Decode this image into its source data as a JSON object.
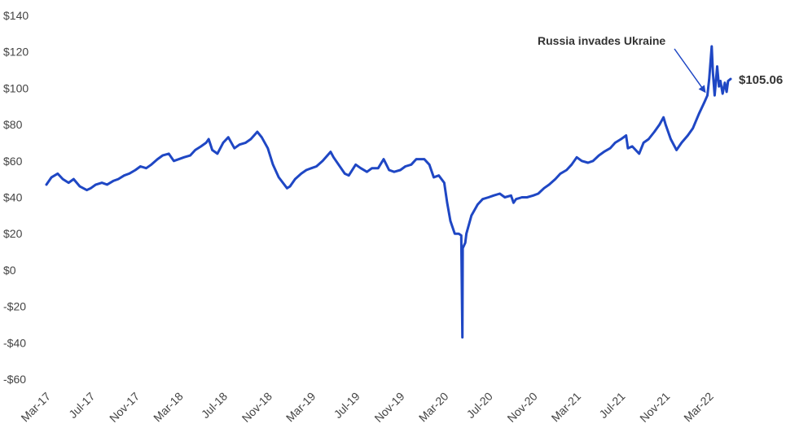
{
  "chart_data": {
    "type": "line",
    "title": "",
    "xlabel": "",
    "ylabel": "",
    "ylim": [
      -60,
      140
    ],
    "y_ticks": [
      140,
      120,
      100,
      80,
      60,
      40,
      20,
      0,
      -20,
      -40,
      -60
    ],
    "y_tick_labels": [
      "$140",
      "$120",
      "$100",
      "$80",
      "$60",
      "$40",
      "$20",
      "$0",
      "-$20",
      "-$40",
      "-$60"
    ],
    "x_tick_labels": [
      "Mar-17",
      "Jul-17",
      "Nov-17",
      "Mar-18",
      "Jul-18",
      "Nov-18",
      "Mar-19",
      "Jul-19",
      "Nov-19",
      "Mar-20",
      "Jul-20",
      "Nov-20",
      "Mar-21",
      "Jul-21",
      "Nov-21",
      "Mar-22"
    ],
    "grid": false,
    "legend": "none",
    "line_color": "#1f47c4",
    "series": [
      {
        "x": [
          "2017-03-01",
          "2017-03-15",
          "2017-04-01",
          "2017-04-15",
          "2017-05-01",
          "2017-05-15",
          "2017-06-01",
          "2017-06-20",
          "2017-07-01",
          "2017-07-15",
          "2017-08-01",
          "2017-08-15",
          "2017-09-01",
          "2017-09-15",
          "2017-10-01",
          "2017-10-15",
          "2017-11-01",
          "2017-11-15",
          "2017-12-01",
          "2017-12-15",
          "2018-01-01",
          "2018-01-15",
          "2018-02-01",
          "2018-02-15",
          "2018-03-01",
          "2018-03-15",
          "2018-04-01",
          "2018-04-15",
          "2018-05-01",
          "2018-05-15",
          "2018-05-22",
          "2018-06-01",
          "2018-06-15",
          "2018-07-01",
          "2018-07-15",
          "2018-08-01",
          "2018-08-15",
          "2018-09-01",
          "2018-09-15",
          "2018-10-03",
          "2018-10-15",
          "2018-11-01",
          "2018-11-15",
          "2018-12-01",
          "2018-12-24",
          "2019-01-01",
          "2019-01-15",
          "2019-02-01",
          "2019-02-15",
          "2019-03-01",
          "2019-03-15",
          "2019-04-01",
          "2019-04-23",
          "2019-05-01",
          "2019-05-15",
          "2019-06-01",
          "2019-06-12",
          "2019-07-01",
          "2019-07-15",
          "2019-08-01",
          "2019-08-15",
          "2019-09-01",
          "2019-09-16",
          "2019-10-01",
          "2019-10-15",
          "2019-11-01",
          "2019-11-15",
          "2019-12-01",
          "2019-12-15",
          "2020-01-06",
          "2020-01-20",
          "2020-02-01",
          "2020-02-15",
          "2020-03-01",
          "2020-03-09",
          "2020-03-18",
          "2020-03-30",
          "2020-04-10",
          "2020-04-17",
          "2020-04-20",
          "2020-04-21",
          "2020-04-28",
          "2020-05-01",
          "2020-05-15",
          "2020-06-01",
          "2020-06-15",
          "2020-07-01",
          "2020-07-15",
          "2020-08-01",
          "2020-08-15",
          "2020-09-01",
          "2020-09-08",
          "2020-09-15",
          "2020-10-01",
          "2020-10-15",
          "2020-11-01",
          "2020-11-15",
          "2020-12-01",
          "2020-12-15",
          "2021-01-01",
          "2021-01-15",
          "2021-02-01",
          "2021-02-15",
          "2021-03-01",
          "2021-03-15",
          "2021-04-01",
          "2021-04-15",
          "2021-05-01",
          "2021-05-15",
          "2021-06-01",
          "2021-06-15",
          "2021-07-01",
          "2021-07-15",
          "2021-07-20",
          "2021-08-01",
          "2021-08-20",
          "2021-09-01",
          "2021-09-15",
          "2021-10-01",
          "2021-10-15",
          "2021-10-26",
          "2021-11-01",
          "2021-11-15",
          "2021-12-01",
          "2021-12-15",
          "2022-01-01",
          "2022-01-15",
          "2022-02-01",
          "2022-02-15",
          "2022-02-24",
          "2022-03-01",
          "2022-03-08",
          "2022-03-11",
          "2022-03-16",
          "2022-03-23",
          "2022-03-28",
          "2022-04-01",
          "2022-04-07",
          "2022-04-13",
          "2022-04-18",
          "2022-04-22",
          "2022-04-29"
        ],
        "values": [
          47,
          51,
          53,
          50,
          48,
          50,
          46,
          44,
          45,
          47,
          48,
          47,
          49,
          50,
          52,
          53,
          55,
          57,
          56,
          58,
          61,
          63,
          64,
          60,
          61,
          62,
          63,
          66,
          68,
          70,
          72,
          66,
          64,
          70,
          73,
          67,
          69,
          70,
          72,
          76,
          73,
          67,
          58,
          51,
          45,
          46,
          50,
          53,
          55,
          56,
          57,
          60,
          65,
          62,
          58,
          53,
          52,
          58,
          56,
          54,
          56,
          56,
          61,
          55,
          54,
          55,
          57,
          58,
          61,
          61,
          58,
          51,
          52,
          48,
          37,
          27,
          20,
          20,
          19,
          -37,
          12,
          15,
          20,
          30,
          36,
          39,
          40,
          41,
          42,
          40,
          41,
          37,
          39,
          40,
          40,
          41,
          42,
          45,
          47,
          50,
          53,
          55,
          58,
          62,
          60,
          59,
          60,
          63,
          65,
          67,
          70,
          72,
          74,
          67,
          68,
          64,
          70,
          72,
          76,
          80,
          84,
          80,
          72,
          66,
          70,
          74,
          78,
          86,
          92,
          96,
          105,
          123,
          109,
          96,
          112,
          101,
          104,
          97,
          103,
          98,
          104,
          105.06
        ]
      }
    ],
    "annotation": {
      "label": "Russia invades Ukraine",
      "point_date": "2022-02-24",
      "point_value": 96
    },
    "end_label": "$105.06"
  }
}
